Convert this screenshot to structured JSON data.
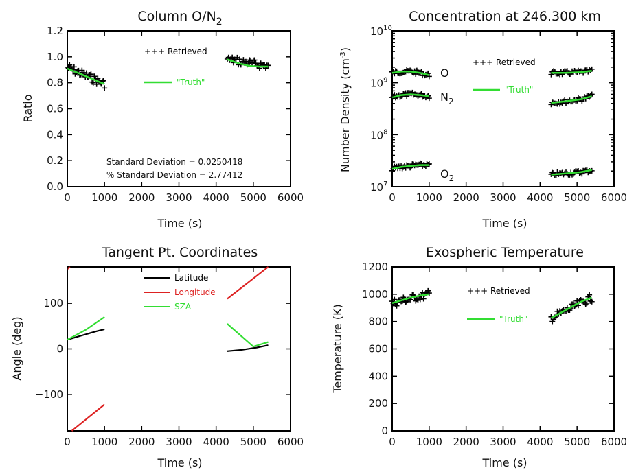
{
  "colors": {
    "retrieved": "#000000",
    "truth": "#33dd33",
    "latitude": "#000000",
    "longitude": "#dd2222",
    "sza": "#33dd33"
  },
  "chart_data": [
    {
      "id": "on2",
      "type": "scatter",
      "title_main": "Column O/N",
      "title_sub": "2",
      "xlabel": "Time (s)",
      "ylabel": "Ratio",
      "xlim": [
        0,
        6000
      ],
      "ylim": [
        0,
        1.2
      ],
      "xticks": [
        "0",
        "1000",
        "2000",
        "3000",
        "4000",
        "5000",
        "6000"
      ],
      "yticks": [
        "0.0",
        "0.2",
        "0.4",
        "0.6",
        "0.8",
        "1.0",
        "1.2"
      ],
      "legend": {
        "retrieved_label": "+++ Retrieved",
        "truth_label": "\"Truth\"",
        "placement": "top-center"
      },
      "annotations": [
        "Standard Deviation = 0.0250418",
        "% Standard Deviation = 2.77412"
      ],
      "series": [
        {
          "name": "Retrieved",
          "kind": "scatter",
          "segments": [
            {
              "x": [
                0,
                1000
              ],
              "y": [
                0.92,
                0.79
              ]
            },
            {
              "x": [
                4300,
                5400
              ],
              "y": [
                0.98,
                0.93
              ]
            }
          ]
        },
        {
          "name": "\"Truth\"",
          "kind": "line",
          "segments": [
            {
              "x": [
                0,
                250,
                500,
                750,
                1000
              ],
              "y": [
                0.91,
                0.88,
                0.85,
                0.82,
                0.79
              ]
            },
            {
              "x": [
                4300,
                4600,
                4900,
                5150,
                5400
              ],
              "y": [
                0.98,
                0.95,
                0.93,
                0.925,
                0.925
              ]
            }
          ]
        }
      ]
    },
    {
      "id": "conc",
      "type": "scatter",
      "title": "Concentration at 246.300 km",
      "xlabel": "Time (s)",
      "ylabel": "Number Density (cm",
      "ylabel_sup": "-3",
      "ylabel_end": ")",
      "xlim": [
        0,
        6000
      ],
      "ylim": [
        10000000.0,
        10000000000.0
      ],
      "log_y": true,
      "xticks": [
        "0",
        "1000",
        "2000",
        "3000",
        "4000",
        "5000",
        "6000"
      ],
      "yticks_base": "10",
      "yticks_exp": [
        "7",
        "8",
        "9",
        "10"
      ],
      "legend": {
        "retrieved_label": "+++ Retrieved",
        "truth_label": "\"Truth\"",
        "placement": "top-right"
      },
      "species": [
        {
          "label": "O",
          "sub": "",
          "segments": [
            {
              "x": [
                0,
                250,
                500,
                750,
                1000
              ],
              "y": [
                1550000000.0,
                1650000000.0,
                1650000000.0,
                1550000000.0,
                1400000000.0
              ]
            },
            {
              "x": [
                4300,
                4700,
                5100,
                5400
              ],
              "y": [
                1550000000.0,
                1550000000.0,
                1600000000.0,
                1700000000.0
              ]
            }
          ]
        },
        {
          "label": "N",
          "sub": "2",
          "segments": [
            {
              "x": [
                0,
                250,
                500,
                750,
                1000
              ],
              "y": [
                520000000.0,
                580000000.0,
                600000000.0,
                580000000.0,
                550000000.0
              ]
            },
            {
              "x": [
                4300,
                4700,
                5100,
                5400
              ],
              "y": [
                410000000.0,
                440000000.0,
                480000000.0,
                550000000.0
              ]
            }
          ]
        },
        {
          "label": "O",
          "sub": "2",
          "segments": [
            {
              "x": [
                0,
                250,
                500,
                750,
                1000
              ],
              "y": [
                22000000.0,
                24000000.0,
                25000000.0,
                26000000.0,
                26000000.0
              ]
            },
            {
              "x": [
                4300,
                4700,
                5100,
                5400
              ],
              "y": [
                17000000.0,
                18000000.0,
                19000000.0,
                21000000.0
              ]
            }
          ]
        }
      ]
    },
    {
      "id": "tang",
      "type": "line",
      "title": "Tangent Pt. Coordinates",
      "xlabel": "Time (s)",
      "ylabel": "Angle (deg)",
      "xlim": [
        0,
        6000
      ],
      "ylim": [
        -180,
        180
      ],
      "xticks": [
        "0",
        "1000",
        "2000",
        "3000",
        "4000",
        "5000",
        "6000"
      ],
      "yticks_vals": [
        -100,
        0,
        100
      ],
      "yticks": [
        "−100",
        "0",
        "100"
      ],
      "legend": {
        "placement": "top-center"
      },
      "series": [
        {
          "name": "Latitude",
          "segments": [
            {
              "x": [
                0,
                250,
                500,
                750,
                1000
              ],
              "y": [
                20,
                26,
                32,
                38,
                43
              ]
            },
            {
              "x": [
                4300,
                4700,
                5100,
                5400
              ],
              "y": [
                -5,
                -2,
                3,
                8
              ]
            }
          ]
        },
        {
          "name": "Longitude",
          "segments": [
            {
              "x": [
                0,
                70
              ],
              "y": [
                175,
                180
              ]
            },
            {
              "x": [
                120,
                1000
              ],
              "y": [
                -180,
                -122
              ]
            },
            {
              "x": [
                4300,
                5400
              ],
              "y": [
                110,
                180
              ]
            }
          ]
        },
        {
          "name": "SZA",
          "segments": [
            {
              "x": [
                0,
                500,
                1000
              ],
              "y": [
                20,
                42,
                70
              ]
            },
            {
              "x": [
                4300,
                5000,
                5400
              ],
              "y": [
                55,
                5,
                15
              ]
            }
          ]
        }
      ]
    },
    {
      "id": "exo",
      "type": "scatter",
      "title": "Exospheric Temperature",
      "xlabel": "Time (s)",
      "ylabel": "Temperature (K)",
      "xlim": [
        0,
        6000
      ],
      "ylim": [
        0,
        1200
      ],
      "xticks": [
        "0",
        "1000",
        "2000",
        "3000",
        "4000",
        "5000",
        "6000"
      ],
      "yticks": [
        "0",
        "200",
        "400",
        "600",
        "800",
        "1000",
        "1200"
      ],
      "legend": {
        "retrieved_label": "+++ Retrieved",
        "truth_label": "\"Truth\"",
        "placement": "top-right"
      },
      "series": [
        {
          "name": "Retrieved",
          "kind": "scatter",
          "segments": [
            {
              "x": [
                0,
                1000
              ],
              "y": [
                935,
                1000
              ]
            },
            {
              "x": [
                4300,
                5400
              ],
              "y": [
                825,
                975
              ]
            }
          ]
        },
        {
          "name": "\"Truth\"",
          "kind": "line",
          "segments": [
            {
              "x": [
                0,
                250,
                500,
                750,
                1000
              ],
              "y": [
                935,
                955,
                975,
                990,
                1000
              ]
            },
            {
              "x": [
                4300,
                4600,
                4900,
                5150,
                5400
              ],
              "y": [
                825,
                870,
                915,
                950,
                975
              ]
            }
          ]
        }
      ]
    }
  ]
}
